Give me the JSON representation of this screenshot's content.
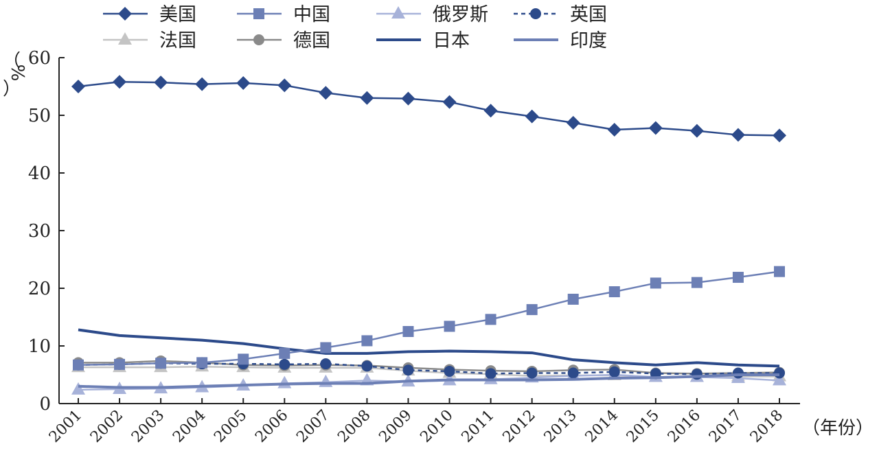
{
  "chart_data": {
    "type": "line",
    "title": "",
    "ylabel": "%",
    "ylabel_parens": [
      "（",
      "）"
    ],
    "xlabel": "（年份）",
    "ylim": [
      0,
      60
    ],
    "yticks": [
      0,
      10,
      20,
      30,
      40,
      50,
      60
    ],
    "grid": false,
    "legend_position": "top",
    "x": [
      "2001",
      "2002",
      "2003",
      "2004",
      "2005",
      "2006",
      "2007",
      "2008",
      "2009",
      "2010",
      "2011",
      "2012",
      "2013",
      "2014",
      "2015",
      "2016",
      "2017",
      "2018"
    ],
    "series": [
      {
        "name": "美国",
        "color": "#2c4a8a",
        "marker": "diamond",
        "dash": false,
        "values": [
          55.0,
          55.8,
          55.7,
          55.4,
          55.6,
          55.2,
          53.9,
          53.0,
          52.9,
          52.3,
          50.8,
          49.8,
          48.7,
          47.5,
          47.8,
          47.3,
          46.6,
          46.5
        ]
      },
      {
        "name": "中国",
        "color": "#6c7fb5",
        "marker": "square",
        "dash": false,
        "values": [
          6.7,
          6.8,
          7.0,
          7.1,
          7.7,
          8.7,
          9.7,
          10.9,
          12.5,
          13.4,
          14.6,
          16.3,
          18.1,
          19.4,
          20.9,
          21.0,
          21.9,
          22.9
        ]
      },
      {
        "name": "俄罗斯",
        "color": "#a7b2d9",
        "marker": "triangle",
        "dash": false,
        "values": [
          2.4,
          2.5,
          2.6,
          2.8,
          3.1,
          3.5,
          3.7,
          4.0,
          3.8,
          4.0,
          4.2,
          4.5,
          4.8,
          5.0,
          4.6,
          4.6,
          4.4,
          4.0
        ]
      },
      {
        "name": "英国",
        "color": "#2c4a8a",
        "marker": "circle",
        "dash": true,
        "values": [
          6.7,
          6.8,
          7.0,
          6.9,
          6.9,
          6.8,
          6.9,
          6.5,
          5.8,
          5.6,
          5.2,
          5.3,
          5.3,
          5.5,
          5.2,
          5.1,
          5.3,
          5.3
        ]
      },
      {
        "name": "法国",
        "color": "#c4c4c4",
        "marker": "triangle",
        "dash": false,
        "values": [
          6.3,
          6.3,
          6.3,
          6.4,
          6.3,
          6.2,
          6.2,
          6.2,
          5.7,
          5.3,
          5.1,
          4.8,
          4.9,
          4.9,
          4.6,
          4.6,
          4.7,
          4.7
        ]
      },
      {
        "name": "德国",
        "color": "#8a8a8a",
        "marker": "circle",
        "dash": false,
        "values": [
          7.1,
          7.1,
          7.4,
          7.1,
          6.7,
          6.6,
          6.7,
          6.6,
          6.2,
          5.9,
          5.7,
          5.6,
          5.8,
          5.9,
          5.3,
          5.2,
          5.3,
          5.4
        ]
      },
      {
        "name": "日本",
        "color": "#2c4a8a",
        "marker": "none",
        "dash": false,
        "thick": true,
        "values": [
          12.8,
          11.8,
          11.4,
          11.0,
          10.4,
          9.5,
          8.7,
          8.7,
          9.0,
          9.1,
          9.0,
          8.8,
          7.6,
          7.1,
          6.7,
          7.1,
          6.7,
          6.5
        ]
      },
      {
        "name": "印度",
        "color": "#6c7fb5",
        "marker": "none",
        "dash": false,
        "thick": true,
        "values": [
          3.0,
          2.8,
          2.8,
          3.0,
          3.2,
          3.4,
          3.5,
          3.5,
          3.9,
          4.1,
          4.1,
          4.1,
          4.2,
          4.4,
          4.5,
          4.7,
          5.0,
          5.0
        ]
      }
    ]
  }
}
